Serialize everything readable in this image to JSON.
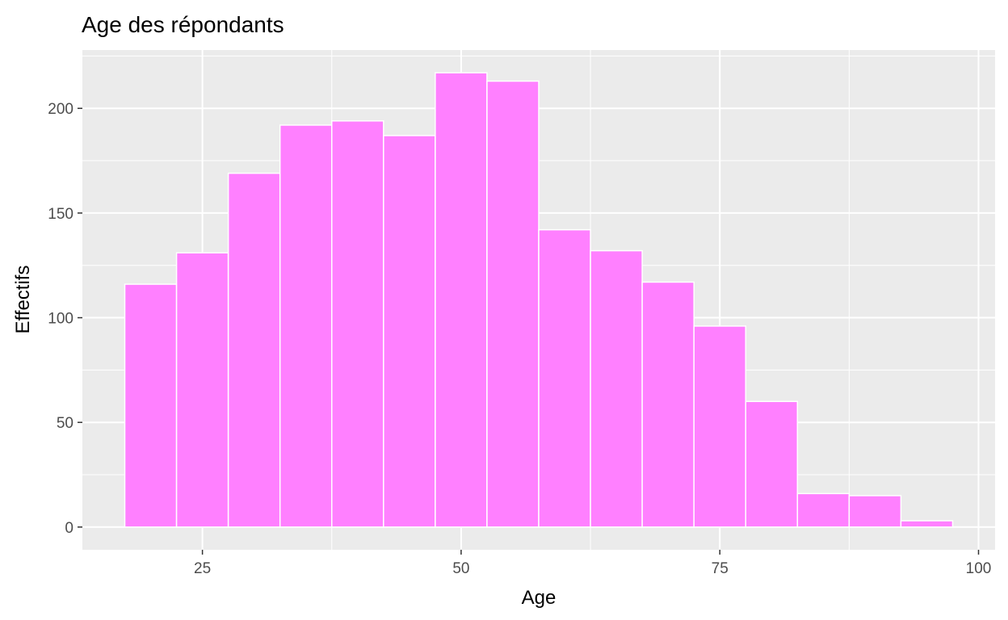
{
  "chart_data": {
    "type": "bar",
    "title": "Age des répondants",
    "xlabel": "Age",
    "ylabel": "Effectifs",
    "bin_width": 5,
    "bins": [
      {
        "start": 17.5,
        "end": 22.5,
        "count": 116
      },
      {
        "start": 22.5,
        "end": 27.5,
        "count": 131
      },
      {
        "start": 27.5,
        "end": 32.5,
        "count": 169
      },
      {
        "start": 32.5,
        "end": 37.5,
        "count": 192
      },
      {
        "start": 37.5,
        "end": 42.5,
        "count": 194
      },
      {
        "start": 42.5,
        "end": 47.5,
        "count": 187
      },
      {
        "start": 47.5,
        "end": 52.5,
        "count": 217
      },
      {
        "start": 52.5,
        "end": 57.5,
        "count": 213
      },
      {
        "start": 57.5,
        "end": 62.5,
        "count": 142
      },
      {
        "start": 62.5,
        "end": 67.5,
        "count": 132
      },
      {
        "start": 67.5,
        "end": 72.5,
        "count": 117
      },
      {
        "start": 72.5,
        "end": 77.5,
        "count": 96
      },
      {
        "start": 77.5,
        "end": 82.5,
        "count": 60
      },
      {
        "start": 82.5,
        "end": 87.5,
        "count": 16
      },
      {
        "start": 87.5,
        "end": 92.5,
        "count": 15
      },
      {
        "start": 92.5,
        "end": 97.5,
        "count": 3
      }
    ],
    "xlim": [
      13.4,
      101.6
    ],
    "ylim": [
      -10.85,
      227.85
    ],
    "xticks": [
      25,
      50,
      75,
      100
    ],
    "yticks": [
      0,
      50,
      100,
      150,
      200
    ],
    "grid": true,
    "legend": "none"
  },
  "colors": {
    "bar_fill": "#FF80FF",
    "bar_outline": "#FFFFFF",
    "panel_background": "#EBEBEB",
    "grid_major": "#FFFFFF",
    "tick_text": "#4D4D4D"
  }
}
